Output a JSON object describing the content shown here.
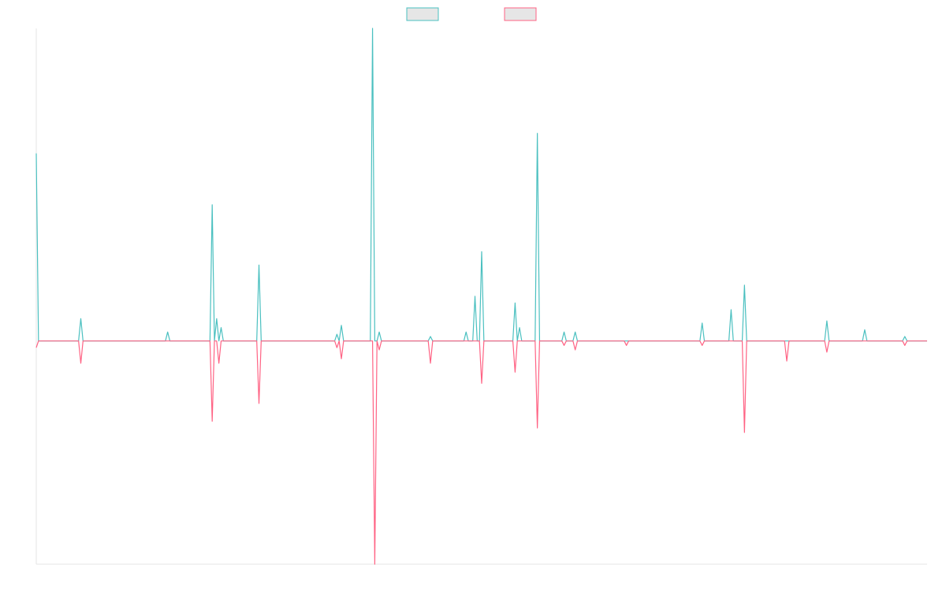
{
  "chart_data": {
    "type": "line",
    "title": "",
    "xlabel": "",
    "ylabel": "",
    "grid": false,
    "legend": {
      "placement": "top-center"
    },
    "ylim": [
      -1.0,
      1.4
    ],
    "xlim": [
      0,
      400
    ],
    "series": [
      {
        "name": "",
        "color": "#4bc0c0",
        "legend_fill": "#e6e6e6",
        "points": [
          [
            0,
            0.84
          ],
          [
            1,
            0
          ],
          [
            6,
            0
          ],
          [
            15,
            0
          ],
          [
            19,
            0
          ],
          [
            20,
            0.1
          ],
          [
            21,
            0
          ],
          [
            58,
            0
          ],
          [
            59,
            0.04
          ],
          [
            60,
            0
          ],
          [
            78,
            0
          ],
          [
            79,
            0.61
          ],
          [
            80,
            0
          ],
          [
            81,
            0.1
          ],
          [
            82,
            0
          ],
          [
            83,
            0.06
          ],
          [
            84,
            0
          ],
          [
            99,
            0
          ],
          [
            100,
            0.34
          ],
          [
            101,
            0
          ],
          [
            130,
            0
          ],
          [
            134,
            0
          ],
          [
            135,
            0.03
          ],
          [
            136,
            0
          ],
          [
            137,
            0.07
          ],
          [
            138,
            0
          ],
          [
            150,
            0
          ],
          [
            151,
            1.4
          ],
          [
            152,
            0
          ],
          [
            153,
            0
          ],
          [
            154,
            0.04
          ],
          [
            155,
            0
          ],
          [
            176,
            0
          ],
          [
            177,
            0.02
          ],
          [
            178,
            0
          ],
          [
            192,
            0
          ],
          [
            193,
            0.04
          ],
          [
            194,
            0
          ],
          [
            196,
            0
          ],
          [
            197,
            0.2
          ],
          [
            198,
            0
          ],
          [
            199,
            0
          ],
          [
            200,
            0.4
          ],
          [
            201,
            0
          ],
          [
            214,
            0
          ],
          [
            215,
            0.17
          ],
          [
            216,
            0
          ],
          [
            217,
            0.06
          ],
          [
            218,
            0
          ],
          [
            224,
            0
          ],
          [
            225,
            0.93
          ],
          [
            226,
            0
          ],
          [
            236,
            0
          ],
          [
            237,
            0.04
          ],
          [
            238,
            0
          ],
          [
            241,
            0
          ],
          [
            242,
            0.04
          ],
          [
            243,
            0
          ],
          [
            298,
            0
          ],
          [
            299,
            0.08
          ],
          [
            300,
            0
          ],
          [
            311,
            0
          ],
          [
            312,
            0.14
          ],
          [
            313,
            0
          ],
          [
            317,
            0
          ],
          [
            318,
            0.25
          ],
          [
            319,
            0
          ],
          [
            354,
            0
          ],
          [
            355,
            0.09
          ],
          [
            356,
            0
          ],
          [
            371,
            0
          ],
          [
            372,
            0.05
          ],
          [
            373,
            0
          ],
          [
            389,
            0
          ],
          [
            390,
            0.02
          ],
          [
            391,
            0
          ],
          [
            400,
            0
          ]
        ]
      },
      {
        "name": "",
        "color": "#ff6384",
        "legend_fill": "#e6e6e6",
        "points": [
          [
            0,
            -0.03
          ],
          [
            1,
            0
          ],
          [
            6,
            0
          ],
          [
            15,
            0
          ],
          [
            19,
            0
          ],
          [
            20,
            -0.1
          ],
          [
            21,
            0
          ],
          [
            78,
            0
          ],
          [
            79,
            -0.36
          ],
          [
            80,
            0
          ],
          [
            81,
            0
          ],
          [
            82,
            -0.1
          ],
          [
            83,
            0
          ],
          [
            84,
            0
          ],
          [
            99,
            0
          ],
          [
            100,
            -0.28
          ],
          [
            101,
            0
          ],
          [
            134,
            0
          ],
          [
            135,
            -0.03
          ],
          [
            136,
            0
          ],
          [
            137,
            -0.08
          ],
          [
            138,
            0
          ],
          [
            151,
            0
          ],
          [
            152,
            -1.0
          ],
          [
            153,
            0
          ],
          [
            154,
            -0.04
          ],
          [
            155,
            0
          ],
          [
            176,
            0
          ],
          [
            177,
            -0.1
          ],
          [
            178,
            0
          ],
          [
            199,
            0
          ],
          [
            200,
            -0.19
          ],
          [
            201,
            0
          ],
          [
            214,
            0
          ],
          [
            215,
            -0.14
          ],
          [
            216,
            0
          ],
          [
            224,
            0
          ],
          [
            225,
            -0.39
          ],
          [
            226,
            0
          ],
          [
            236,
            0
          ],
          [
            237,
            -0.02
          ],
          [
            238,
            0
          ],
          [
            241,
            0
          ],
          [
            242,
            -0.04
          ],
          [
            243,
            0
          ],
          [
            264,
            0
          ],
          [
            265,
            -0.02
          ],
          [
            266,
            0
          ],
          [
            298,
            0
          ],
          [
            299,
            -0.02
          ],
          [
            300,
            0
          ],
          [
            317,
            0
          ],
          [
            318,
            -0.41
          ],
          [
            319,
            0
          ],
          [
            336,
            0
          ],
          [
            337,
            -0.09
          ],
          [
            338,
            0
          ],
          [
            354,
            0
          ],
          [
            355,
            -0.05
          ],
          [
            356,
            0
          ],
          [
            389,
            0
          ],
          [
            390,
            -0.02
          ],
          [
            391,
            0
          ],
          [
            400,
            0
          ]
        ]
      }
    ]
  }
}
